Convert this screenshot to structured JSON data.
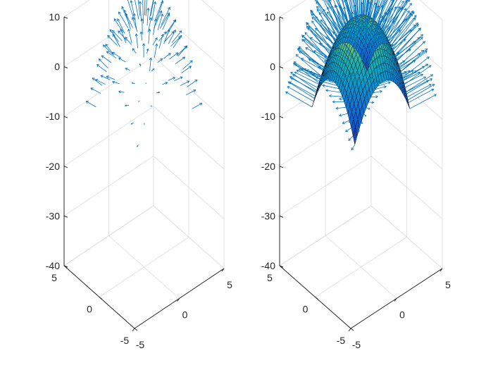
{
  "chart_data": [
    {
      "type": "3d-quiver",
      "title": "",
      "xlabel": "",
      "ylabel": "",
      "zlabel": "",
      "xlim": [
        -5,
        5
      ],
      "ylim": [
        -5,
        5
      ],
      "zlim": [
        -40,
        10
      ],
      "x_ticks": [
        "-5",
        "0",
        "5"
      ],
      "y_ticks": [
        "-5",
        "0",
        "5"
      ],
      "z_ticks": [
        "10",
        "0",
        "-10",
        "-20",
        "-30",
        "-40"
      ],
      "surface": "z = -x^2 - y^2 + 10 (sampled on [-3,3] x [-3,3], 10x10)",
      "surface_shown": false,
      "arrow_color": "#0072BD",
      "arrow_scale": "short",
      "grid": true
    },
    {
      "type": "3d-surface-quiver",
      "title": "",
      "xlabel": "",
      "ylabel": "",
      "zlabel": "",
      "xlim": [
        -5,
        5
      ],
      "ylim": [
        -5,
        5
      ],
      "zlim": [
        -40,
        10
      ],
      "x_ticks": [
        "-5",
        "0",
        "5"
      ],
      "y_ticks": [
        "-5",
        "0",
        "5"
      ],
      "z_ticks": [
        "10",
        "0",
        "-10",
        "-20",
        "-30",
        "-40"
      ],
      "surface": "z = -x^2 - y^2 + 10 (sampled on [-3,3] x [-3,3], 25x25)",
      "surface_shown": true,
      "colormap": "parula",
      "arrow_color": "#0072BD",
      "arrow_scale": "long",
      "grid": true
    }
  ]
}
